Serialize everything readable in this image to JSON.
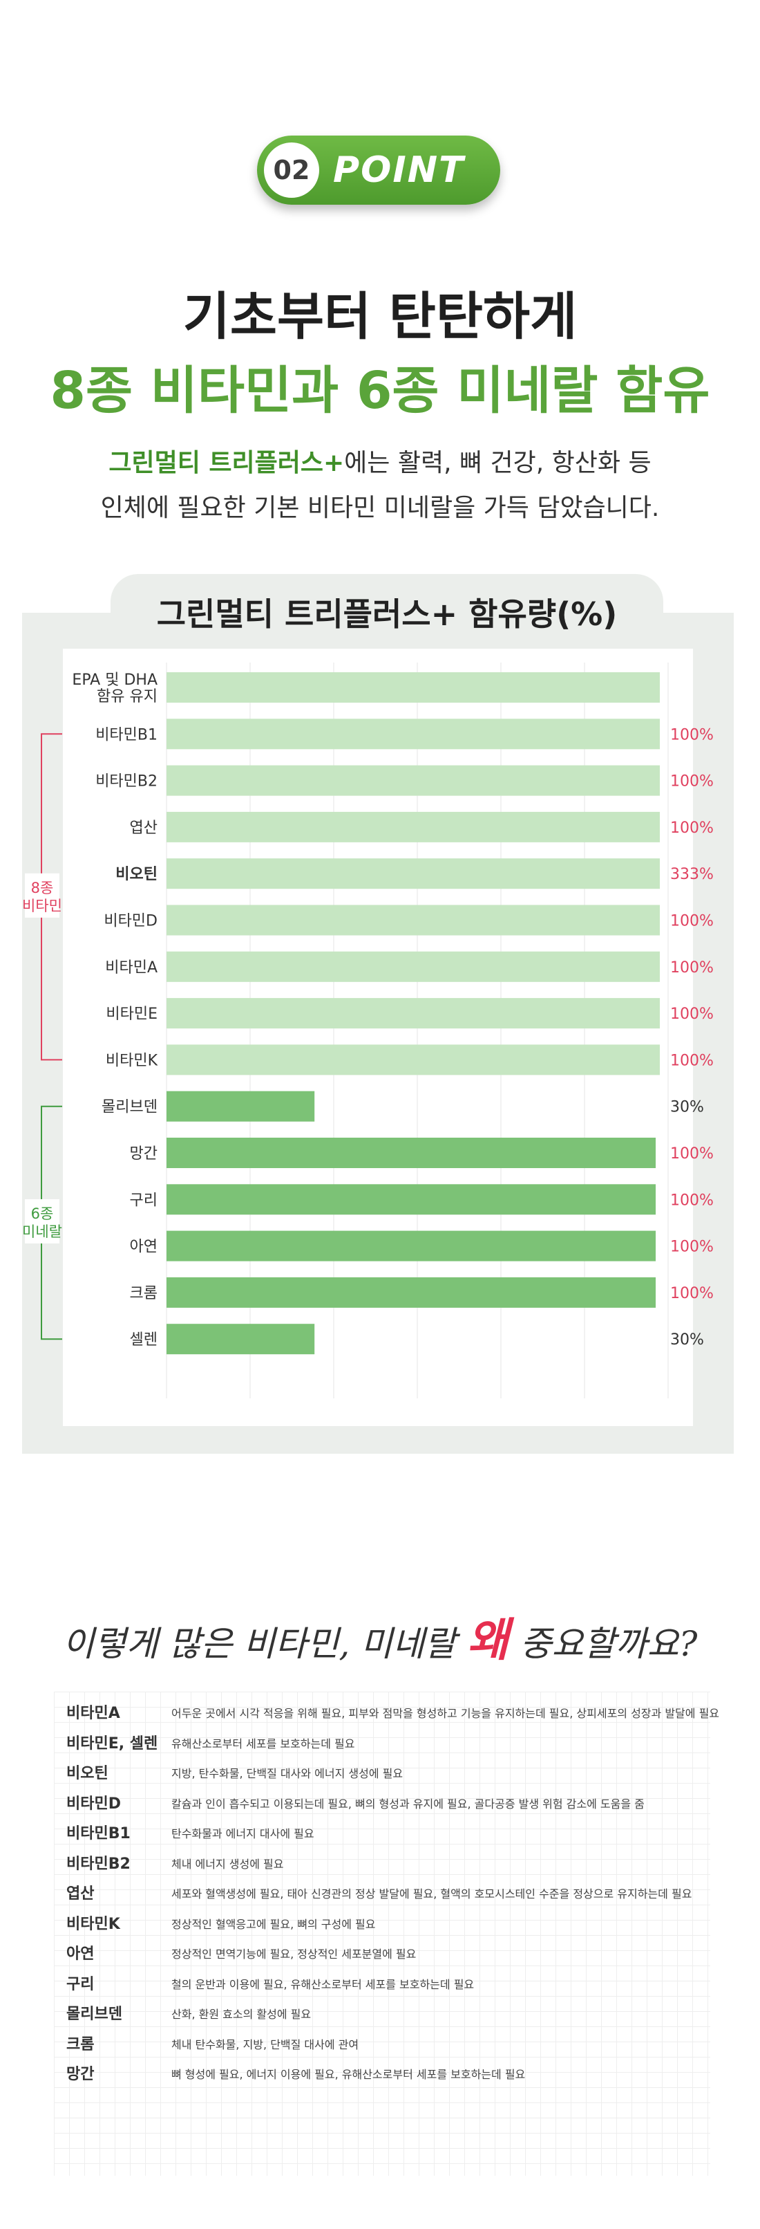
{
  "badge": {
    "number": "02",
    "label": "POINT"
  },
  "headline": {
    "line1": "기초부터 탄탄하게",
    "line2": "8종 비타민과 6종 미네랄 함유"
  },
  "subtitle": {
    "brand": "그린멀티 트리플러스+",
    "line1_rest": "에는 활력, 뼈 건강, 항산화 등",
    "line2": "인체에 필요한 기본 비타민 미네랄을 가득 담았습니다."
  },
  "chart_data": {
    "type": "bar",
    "orientation": "horizontal",
    "title": "그린멀티 트리플러스+ 함유량(%)",
    "categories": [
      "EPA 및 DHA\n함유 유지",
      "비타민B1",
      "비타민B2",
      "엽산",
      "비오틴",
      "비타민D",
      "비타민A",
      "비타민E",
      "비타민K",
      "몰리브덴",
      "망간",
      "구리",
      "아연",
      "크롬",
      "셀렌"
    ],
    "values": [
      null,
      100,
      100,
      100,
      333,
      100,
      100,
      100,
      100,
      30,
      100,
      100,
      100,
      100,
      30
    ],
    "value_labels": [
      "",
      "100%",
      "100%",
      "100%",
      "333%",
      "100%",
      "100%",
      "100%",
      "100%",
      "30%",
      "100%",
      "100%",
      "100%",
      "100%",
      "30%"
    ],
    "bold_categories": [
      "비오틴"
    ],
    "groups": [
      {
        "label": "8종\n비타민",
        "first": 1,
        "last": 8,
        "color": "#e0415f"
      },
      {
        "label": "6종\n미네랄",
        "first": 9,
        "last": 14,
        "color": "#3e9b3e"
      }
    ],
    "grid": true,
    "colors": {
      "vitamin_bar": "#c6e6c2",
      "mineral_bar": "#7cc276",
      "red_label": "#e0415f",
      "dark_label": "#333333"
    }
  },
  "question": {
    "before": "이렇게 많은 비타민, 미네랄 ",
    "why": "왜",
    "after": " 중요할까요?"
  },
  "info_rows": [
    {
      "name": "비타민A",
      "desc": "어두운 곳에서 시각 적응을 위해 필요, 피부와 점막을 형성하고 기능을 유지하는데 필요, 상피세포의 성장과 발달에 필요"
    },
    {
      "name": "비타민E, 셀렌",
      "desc": "유해산소로부터 세포를 보호하는데 필요"
    },
    {
      "name": "비오틴",
      "desc": "지방, 탄수화물, 단백질 대사와 에너지 생성에 필요"
    },
    {
      "name": "비타민D",
      "desc": "칼슘과 인이 흡수되고 이용되는데 필요, 뼈의 형성과 유지에 필요, 골다공증 발생 위험 감소에 도움을 줌"
    },
    {
      "name": "비타민B1",
      "desc": "탄수화물과 에너지 대사에 필요"
    },
    {
      "name": "비타민B2",
      "desc": "체내 에너지 생성에 필요"
    },
    {
      "name": "엽산",
      "desc": "세포와 혈액생성에 필요, 태아 신경관의 정상 발달에 필요, 혈액의 호모시스테인 수준을 정상으로 유지하는데 필요"
    },
    {
      "name": "비타민K",
      "desc": "정상적인 혈액응고에 필요, 뼈의 구성에 필요"
    },
    {
      "name": "아연",
      "desc": "정상적인 면역기능에 필요, 정상적인 세포분열에 필요"
    },
    {
      "name": "구리",
      "desc": "철의 운반과 이용에 필요, 유해산소로부터 세포를 보호하는데 필요"
    },
    {
      "name": "몰리브덴",
      "desc": "산화, 환원 효소의 활성에 필요"
    },
    {
      "name": "크롬",
      "desc": "체내 탄수화물, 지방, 단백질 대사에 관여"
    },
    {
      "name": "망간",
      "desc": "뼈 형성에 필요, 에너지 이용에 필요, 유해산소로부터 세포를 보호하는데 필요"
    }
  ]
}
